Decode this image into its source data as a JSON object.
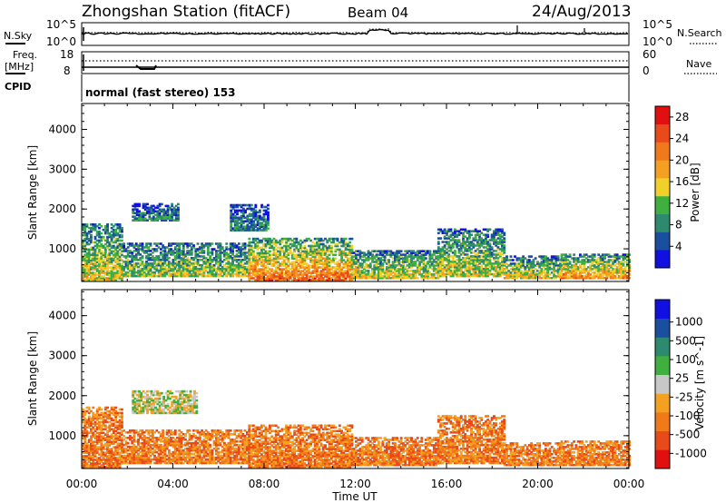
{
  "header": {
    "title": "Zhongshan Station (fitACF)",
    "beam": "Beam 04",
    "date": "24/Aug/2013"
  },
  "strip_top": {
    "left_label": "N.Sky",
    "left_ticks": [
      "10^5",
      "10^0"
    ],
    "right_ticks": [
      "10^5",
      "10^0"
    ],
    "right_label": "N.Search"
  },
  "strip_freq": {
    "left_label_1": "Freq.",
    "left_label_2": "[MHz]",
    "left_ticks": [
      "18",
      "8"
    ],
    "right_ticks": [
      "60",
      "0"
    ],
    "right_label": "Nave",
    "cpid_label": "CPID",
    "mode_text": "normal (fast stereo) 153"
  },
  "colors": {
    "power_scale": [
      "#1010e0",
      "#1a4fa0",
      "#2e8a6e",
      "#3fb03f",
      "#f2d02a",
      "#f4a020",
      "#f07a1a",
      "#e84a1a",
      "#e01010"
    ],
    "velocity_scale": [
      "#e01010",
      "#e84a1a",
      "#f07a1a",
      "#f4a020",
      "#c8c8c8",
      "#3fb03f",
      "#2e8a6e",
      "#1a4fa0",
      "#1010e0"
    ]
  },
  "chart_data": [
    {
      "type": "heatmap",
      "name": "power",
      "ylabel": "Slant Range [km]",
      "xlabel": "Time UT",
      "x_ticks": [
        "00:00",
        "04:00",
        "08:00",
        "12:00",
        "16:00",
        "20:00",
        "00:00"
      ],
      "y_ticks": [
        "1000",
        "2000",
        "3000",
        "4000"
      ],
      "ylim_km": [
        180,
        4650
      ],
      "xlim_hours": [
        0,
        24
      ],
      "colorbar_label": "Power [dB]",
      "colorbar_ticks": [
        "4",
        "8",
        "12",
        "16",
        "20",
        "24",
        "28"
      ],
      "colorbar_range": [
        0,
        30
      ],
      "scatter_regions": [
        {
          "t0": 0.0,
          "t1": 1.8,
          "r0": 200,
          "r1": 1600,
          "level": 0.55
        },
        {
          "t0": 1.8,
          "t1": 7.3,
          "r0": 300,
          "r1": 1150,
          "level": 0.45
        },
        {
          "t0": 2.2,
          "t1": 4.2,
          "r0": 1700,
          "r1": 2150,
          "level": 0.25
        },
        {
          "t0": 6.5,
          "t1": 8.2,
          "r0": 1450,
          "r1": 2100,
          "level": 0.25
        },
        {
          "t0": 7.3,
          "t1": 11.8,
          "r0": 200,
          "r1": 1250,
          "level": 0.8
        },
        {
          "t0": 11.8,
          "t1": 15.6,
          "r0": 250,
          "r1": 950,
          "level": 0.55
        },
        {
          "t0": 15.6,
          "t1": 18.5,
          "r0": 300,
          "r1": 1500,
          "level": 0.5
        },
        {
          "t0": 18.5,
          "t1": 21.0,
          "r0": 250,
          "r1": 800,
          "level": 0.55
        },
        {
          "t0": 21.0,
          "t1": 24.0,
          "r0": 250,
          "r1": 850,
          "level": 0.7
        }
      ]
    },
    {
      "type": "heatmap",
      "name": "velocity",
      "ylabel": "Slant Range [km]",
      "xlabel": "Time UT",
      "x_ticks": [
        "00:00",
        "04:00",
        "08:00",
        "12:00",
        "16:00",
        "20:00",
        "00:00"
      ],
      "y_ticks": [
        "1000",
        "2000",
        "3000",
        "4000"
      ],
      "ylim_km": [
        180,
        4650
      ],
      "xlim_hours": [
        0,
        24
      ],
      "colorbar_label": "Velocity [m s^-1]",
      "colorbar_ticks": [
        "1000",
        "500",
        "100",
        "25",
        "-25",
        "-100",
        "-500",
        "-1000"
      ],
      "scatter_regions": [
        {
          "t0": 0.0,
          "t1": 1.8,
          "r0": 200,
          "r1": 1700,
          "level": 0.3
        },
        {
          "t0": 1.8,
          "t1": 7.3,
          "r0": 300,
          "r1": 1150,
          "level": 0.3
        },
        {
          "t0": 2.2,
          "t1": 5.0,
          "r0": 1550,
          "r1": 2100,
          "level": 0.45
        },
        {
          "t0": 7.3,
          "t1": 11.8,
          "r0": 200,
          "r1": 1250,
          "level": 0.3
        },
        {
          "t0": 11.8,
          "t1": 15.6,
          "r0": 250,
          "r1": 950,
          "level": 0.3
        },
        {
          "t0": 15.6,
          "t1": 18.5,
          "r0": 300,
          "r1": 1500,
          "level": 0.4
        },
        {
          "t0": 18.5,
          "t1": 21.0,
          "r0": 250,
          "r1": 800,
          "level": 0.4
        },
        {
          "t0": 21.0,
          "t1": 24.0,
          "r0": 250,
          "r1": 850,
          "level": 0.3
        }
      ]
    }
  ]
}
